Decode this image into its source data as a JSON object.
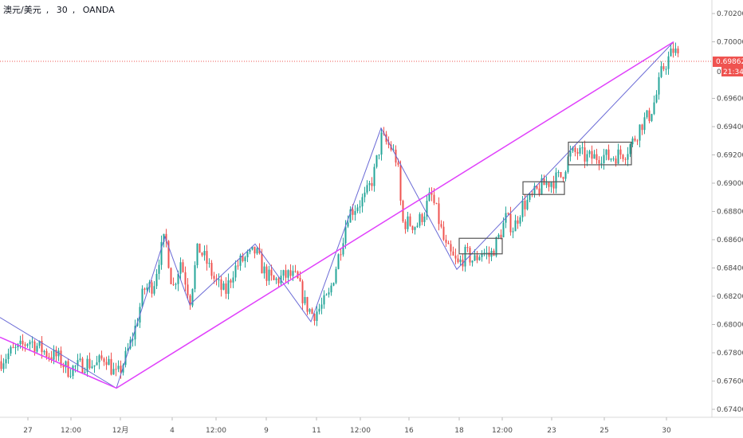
{
  "header": {
    "symbol": "澳元/美元",
    "interval": "30",
    "source": "OANDA"
  },
  "price_tag": {
    "value": "0.69862",
    "countdown": "21:34",
    "partial_label": "0."
  },
  "colors": {
    "up": "#26a69a",
    "down": "#ef5350",
    "trendline": "#e040fb",
    "zigzag": "#6b6bd6",
    "box": "#555555",
    "price_line": "#ef5350"
  },
  "chart_data": {
    "type": "candlestick",
    "ylim": [
      0.6735,
      0.703
    ],
    "x_ticks": [
      "27",
      "12:00",
      "12月",
      "4",
      "12:00",
      "9",
      "11",
      "12:00",
      "16",
      "18",
      "12:00",
      "23",
      "25",
      "30"
    ],
    "y_ticks": [
      "0.67400",
      "0.67600",
      "0.67800",
      "0.68000",
      "0.68200",
      "0.68400",
      "0.68600",
      "0.68800",
      "0.69000",
      "0.69200",
      "0.69400",
      "0.69600",
      "0.69800",
      "0.70000",
      "0.70200"
    ],
    "last_price": 0.69862,
    "price_path": [
      [
        0,
        0.6774
      ],
      [
        12,
        0.678
      ],
      [
        24,
        0.6783
      ],
      [
        36,
        0.6789
      ],
      [
        48,
        0.6784
      ],
      [
        60,
        0.6779
      ],
      [
        72,
        0.6777
      ],
      [
        84,
        0.6768
      ],
      [
        96,
        0.677
      ],
      [
        108,
        0.6773
      ],
      [
        120,
        0.6771
      ],
      [
        132,
        0.6778
      ],
      [
        140,
        0.6768
      ],
      [
        146,
        0.6763
      ],
      [
        156,
        0.6775
      ],
      [
        168,
        0.6795
      ],
      [
        180,
        0.6825
      ],
      [
        192,
        0.6828
      ],
      [
        200,
        0.685
      ],
      [
        207,
        0.6862
      ],
      [
        216,
        0.6825
      ],
      [
        226,
        0.6845
      ],
      [
        238,
        0.6818
      ],
      [
        248,
        0.6855
      ],
      [
        258,
        0.6845
      ],
      [
        270,
        0.683
      ],
      [
        282,
        0.6822
      ],
      [
        292,
        0.6838
      ],
      [
        302,
        0.6845
      ],
      [
        312,
        0.6848
      ],
      [
        320,
        0.6852
      ],
      [
        330,
        0.6838
      ],
      [
        342,
        0.683
      ],
      [
        352,
        0.6833
      ],
      [
        362,
        0.6835
      ],
      [
        372,
        0.6832
      ],
      [
        382,
        0.6815
      ],
      [
        392,
        0.6807
      ],
      [
        402,
        0.6812
      ],
      [
        412,
        0.682
      ],
      [
        424,
        0.6848
      ],
      [
        436,
        0.6878
      ],
      [
        448,
        0.6885
      ],
      [
        458,
        0.689
      ],
      [
        468,
        0.6905
      ],
      [
        478,
        0.6932
      ],
      [
        490,
        0.6925
      ],
      [
        498,
        0.6915
      ],
      [
        504,
        0.6872
      ],
      [
        512,
        0.6872
      ],
      [
        522,
        0.687
      ],
      [
        532,
        0.688
      ],
      [
        540,
        0.6892
      ],
      [
        548,
        0.6878
      ],
      [
        558,
        0.6855
      ],
      [
        566,
        0.6848
      ],
      [
        574,
        0.6842
      ],
      [
        584,
        0.685
      ],
      [
        594,
        0.6845
      ],
      [
        604,
        0.6852
      ],
      [
        614,
        0.6848
      ],
      [
        624,
        0.686
      ],
      [
        634,
        0.6875
      ],
      [
        644,
        0.6868
      ],
      [
        654,
        0.6884
      ],
      [
        664,
        0.6888
      ],
      [
        674,
        0.6895
      ],
      [
        684,
        0.69
      ],
      [
        694,
        0.6902
      ],
      [
        704,
        0.6905
      ],
      [
        714,
        0.692
      ],
      [
        724,
        0.6922
      ],
      [
        734,
        0.6918
      ],
      [
        744,
        0.6918
      ],
      [
        754,
        0.692
      ],
      [
        764,
        0.6918
      ],
      [
        774,
        0.692
      ],
      [
        784,
        0.6922
      ],
      [
        794,
        0.693
      ],
      [
        804,
        0.6942
      ],
      [
        814,
        0.6948
      ],
      [
        822,
        0.696
      ],
      [
        830,
        0.698
      ],
      [
        838,
        0.6988
      ],
      [
        845,
        0.6995
      ],
      [
        852,
        0.6986
      ]
    ],
    "trendlines": [
      {
        "name": "magenta-1",
        "points": [
          [
            0,
            0.6791
          ],
          [
            146,
            0.6755
          ]
        ]
      },
      {
        "name": "magenta-2",
        "points": [
          [
            146,
            0.6755
          ],
          [
            845,
            0.7
          ]
        ]
      }
    ],
    "zigzag": [
      [
        0,
        0.6805
      ],
      [
        146,
        0.6755
      ],
      [
        207,
        0.6862
      ],
      [
        238,
        0.6814
      ],
      [
        320,
        0.6857
      ],
      [
        390,
        0.6802
      ],
      [
        478,
        0.6939
      ],
      [
        573,
        0.6839
      ],
      [
        845,
        0.7
      ]
    ],
    "boxes": [
      {
        "x": [
          576,
          630
        ],
        "y": [
          0.685,
          0.6861
        ]
      },
      {
        "x": [
          656,
          708
        ],
        "y": [
          0.6892,
          0.6901
        ]
      },
      {
        "x": [
          713,
          792
        ],
        "y": [
          0.6913,
          0.6929
        ]
      }
    ]
  }
}
